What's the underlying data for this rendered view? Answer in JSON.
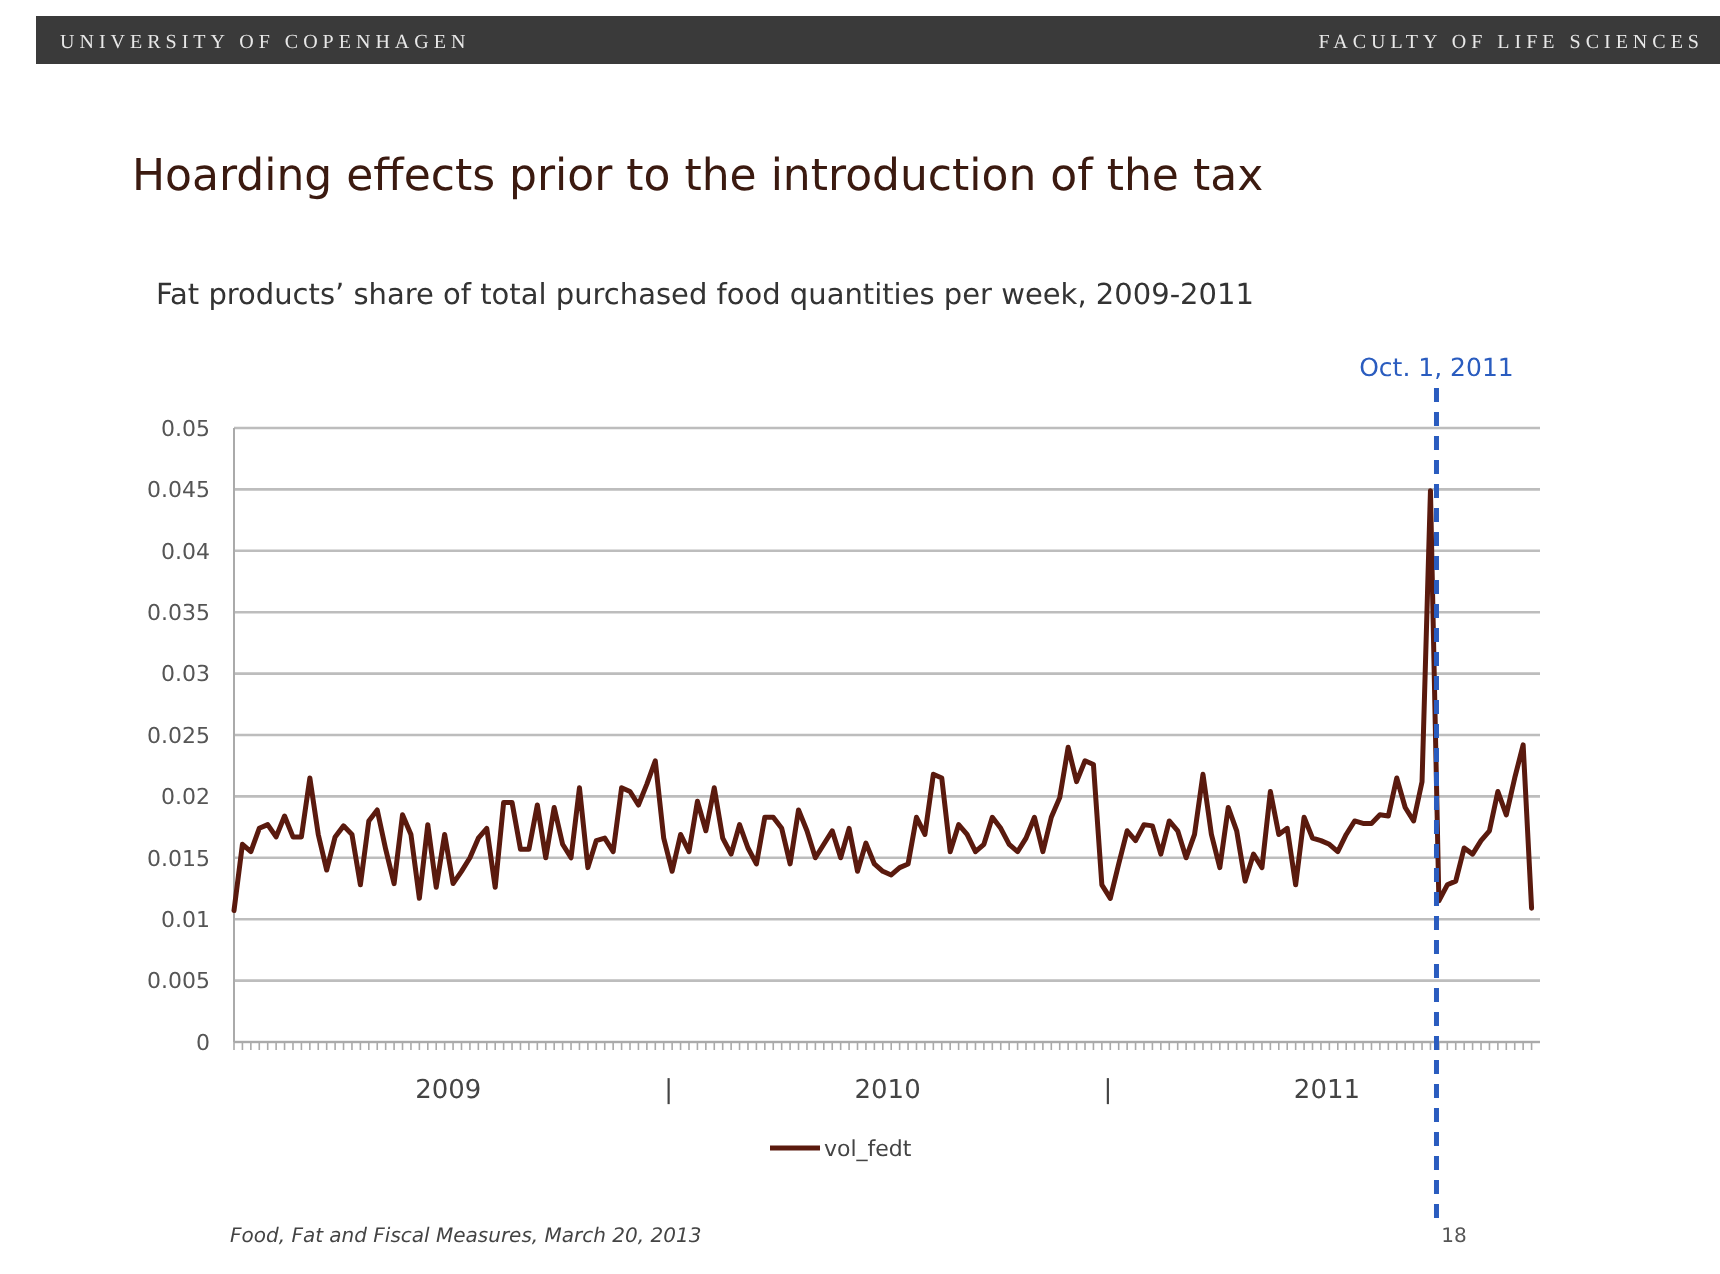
{
  "chart_data": {
    "type": "line",
    "title": "Hoarding effects prior to the introduction of the tax",
    "subtitle": "Fat products’ share of total purchased food quantities per week, 2009-2011",
    "annotations": [
      "UNIVERSITY OF COPENHAGEN",
      "FACULTY OF LIFE SCIENCES",
      "Food, Fat and Fiscal Measures, March 20, 2013",
      "18"
    ],
    "x": [
      "2009-01-05",
      "2009-01-12",
      "2009-01-19",
      "2009-01-26",
      "2009-02-02",
      "2009-02-09",
      "2009-02-16",
      "2009-02-23",
      "2009-03-02",
      "2009-03-09",
      "2009-03-16",
      "2009-03-23",
      "2009-03-30",
      "2009-04-06",
      "2009-04-13",
      "2009-04-20",
      "2009-04-27",
      "2009-05-04",
      "2009-05-11",
      "2009-05-18",
      "2009-05-25",
      "2009-06-01",
      "2009-06-08",
      "2009-06-15",
      "2009-06-22",
      "2009-06-29",
      "2009-07-06",
      "2009-07-13",
      "2009-07-20",
      "2009-07-27",
      "2009-08-03",
      "2009-08-10",
      "2009-08-17",
      "2009-08-24",
      "2009-08-31",
      "2009-09-07",
      "2009-09-14",
      "2009-09-21",
      "2009-09-28",
      "2009-10-05",
      "2009-10-12",
      "2009-10-19",
      "2009-10-26",
      "2009-11-02",
      "2009-11-09",
      "2009-11-16",
      "2009-11-23",
      "2009-11-30",
      "2009-12-07",
      "2009-12-14",
      "2009-12-21",
      "2009-12-28",
      "2010-01-04",
      "2010-01-11",
      "2010-01-18",
      "2010-01-25",
      "2010-02-01",
      "2010-02-08",
      "2010-02-15",
      "2010-02-22",
      "2010-03-01",
      "2010-03-08",
      "2010-03-15",
      "2010-03-22",
      "2010-03-29",
      "2010-04-05",
      "2010-04-12",
      "2010-04-19",
      "2010-04-26",
      "2010-05-03",
      "2010-05-10",
      "2010-05-17",
      "2010-05-24",
      "2010-05-31",
      "2010-06-07",
      "2010-06-14",
      "2010-06-21",
      "2010-06-28",
      "2010-07-05",
      "2010-07-12",
      "2010-07-19",
      "2010-07-26",
      "2010-08-02",
      "2010-08-09",
      "2010-08-16",
      "2010-08-23",
      "2010-08-30",
      "2010-09-06",
      "2010-09-13",
      "2010-09-20",
      "2010-09-27",
      "2010-10-04",
      "2010-10-11",
      "2010-10-18",
      "2010-10-25",
      "2010-11-01",
      "2010-11-08",
      "2010-11-15",
      "2010-11-22",
      "2010-11-29",
      "2010-12-06",
      "2010-12-13",
      "2010-12-20",
      "2010-12-27",
      "2011-01-03",
      "2011-01-10",
      "2011-01-17",
      "2011-01-24",
      "2011-01-31",
      "2011-02-07",
      "2011-02-14",
      "2011-02-21",
      "2011-02-28",
      "2011-03-07",
      "2011-03-14",
      "2011-03-21",
      "2011-03-28",
      "2011-04-04",
      "2011-04-11",
      "2011-04-18",
      "2011-04-25",
      "2011-05-02",
      "2011-05-09",
      "2011-05-16",
      "2011-05-23",
      "2011-05-30",
      "2011-06-06",
      "2011-06-13",
      "2011-06-20",
      "2011-06-27",
      "2011-07-04",
      "2011-07-11",
      "2011-07-18",
      "2011-07-25",
      "2011-08-01",
      "2011-08-08",
      "2011-08-15",
      "2011-08-22",
      "2011-08-29",
      "2011-09-05",
      "2011-09-12",
      "2011-09-19",
      "2011-09-26",
      "2011-10-03",
      "2011-10-10",
      "2011-10-17",
      "2011-10-24",
      "2011-10-31",
      "2011-11-07",
      "2011-11-14",
      "2011-11-21",
      "2011-11-28",
      "2011-12-05",
      "2011-12-12",
      "2011-12-19"
    ],
    "series": [
      {
        "name": "vol_fedt",
        "color": "#5a1a0e",
        "values": [
          0.0107,
          0.0161,
          0.0155,
          0.0174,
          0.0177,
          0.0167,
          0.0184,
          0.0167,
          0.0167,
          0.0215,
          0.0169,
          0.014,
          0.0167,
          0.0176,
          0.0169,
          0.0128,
          0.018,
          0.0189,
          0.0157,
          0.0129,
          0.0185,
          0.0169,
          0.0117,
          0.0177,
          0.0126,
          0.0169,
          0.0129,
          0.0139,
          0.015,
          0.0166,
          0.0174,
          0.0126,
          0.0195,
          0.0195,
          0.0157,
          0.0157,
          0.0193,
          0.015,
          0.0191,
          0.0161,
          0.015,
          0.0207,
          0.0142,
          0.0164,
          0.0166,
          0.0155,
          0.0207,
          0.0204,
          0.0193,
          0.021,
          0.0229,
          0.0166,
          0.0139,
          0.0169,
          0.0155,
          0.0196,
          0.0172,
          0.0207,
          0.0166,
          0.0153,
          0.0177,
          0.0158,
          0.0145,
          0.0183,
          0.0183,
          0.0174,
          0.0145,
          0.0189,
          0.0172,
          0.015,
          0.0161,
          0.0172,
          0.015,
          0.0174,
          0.0139,
          0.0162,
          0.0145,
          0.0139,
          0.0136,
          0.0142,
          0.0145,
          0.0183,
          0.0169,
          0.0218,
          0.0215,
          0.0155,
          0.0177,
          0.0169,
          0.0155,
          0.0161,
          0.0183,
          0.0174,
          0.0161,
          0.0155,
          0.0166,
          0.0183,
          0.0155,
          0.0183,
          0.0199,
          0.024,
          0.0212,
          0.0229,
          0.0226,
          0.0128,
          0.0117,
          0.0145,
          0.0172,
          0.0164,
          0.0177,
          0.0176,
          0.0153,
          0.018,
          0.0172,
          0.015,
          0.0169,
          0.0218,
          0.0169,
          0.0142,
          0.0191,
          0.0172,
          0.0131,
          0.0153,
          0.0142,
          0.0204,
          0.0169,
          0.0174,
          0.0128,
          0.0183,
          0.0166,
          0.0164,
          0.0161,
          0.0155,
          0.0169,
          0.018,
          0.0178,
          0.0178,
          0.0185,
          0.0184,
          0.0215,
          0.0191,
          0.018,
          0.0212,
          0.0449,
          0.0115,
          0.0128,
          0.0131,
          0.0158,
          0.0153,
          0.0164,
          0.0172,
          0.0204,
          0.0185,
          0.0215,
          0.0242,
          0.0109
        ]
      }
    ],
    "xlim": [
      "2009-01-05",
      "2011-12-26"
    ],
    "xticks": [
      {
        "value": "2009-07-02",
        "label": "2009"
      },
      {
        "value": "2010-01-01",
        "label": "|"
      },
      {
        "value": "2010-07-02",
        "label": "2010"
      },
      {
        "value": "2011-01-01",
        "label": "|"
      },
      {
        "value": "2011-07-02",
        "label": "2011"
      }
    ],
    "ylim": [
      0,
      0.05
    ],
    "yticks": [
      0,
      0.005,
      0.01,
      0.015,
      0.02,
      0.025,
      0.03,
      0.035,
      0.04,
      0.045,
      0.05
    ],
    "ref_lines": [
      {
        "axis": "x",
        "value": "2011-10-01",
        "label": "Oct. 1, 2011",
        "color": "#2a5cbf",
        "line_style": "dashed"
      }
    ],
    "grid": "y",
    "legend": "bottom",
    "marker": "none",
    "line_style": "solid"
  }
}
